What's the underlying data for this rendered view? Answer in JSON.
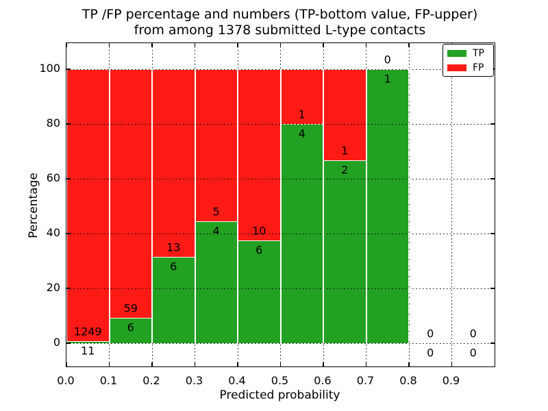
{
  "title": {
    "line1": "TP /FP percentage and numbers (TP-bottom value, FP-upper)",
    "line2": "from among 1378 submitted L-type contacts"
  },
  "axes": {
    "xlabel": "Predicted probability",
    "ylabel": "Percentage",
    "xtick_labels": [
      "0.0",
      "0.1",
      "0.2",
      "0.3",
      "0.4",
      "0.5",
      "0.6",
      "0.7",
      "0.8",
      "0.9"
    ],
    "ytick_labels": [
      "0",
      "20",
      "40",
      "60",
      "80",
      "100"
    ],
    "ytick_values": [
      0,
      20,
      40,
      60,
      80,
      100
    ]
  },
  "legend": {
    "entries": [
      {
        "label": "TP",
        "color": "#22a122"
      },
      {
        "label": "FP",
        "color": "#fe1b15"
      }
    ]
  },
  "colors": {
    "tp_green": "#22a122",
    "fp_red": "#fe1b15",
    "grid": "#000000",
    "background": "#ffffff"
  },
  "chart_data": {
    "type": "bar",
    "stacked": true,
    "title": "TP /FP percentage and numbers (TP-bottom value, FP-upper) from among 1378 submitted L-type contacts",
    "xlabel": "Predicted probability",
    "ylabel": "Percentage",
    "total_contacts": 1378,
    "bin_starts": [
      0.0,
      0.1,
      0.2,
      0.3,
      0.4,
      0.5,
      0.6,
      0.7,
      0.8,
      0.9
    ],
    "bin_width": 0.1,
    "series": [
      {
        "name": "TP",
        "color": "#22a122",
        "counts": [
          11,
          6,
          6,
          4,
          6,
          4,
          2,
          1,
          0,
          0
        ],
        "pct": [
          0.87,
          9.23,
          31.58,
          44.44,
          37.5,
          80.0,
          66.67,
          100.0,
          0,
          0
        ]
      },
      {
        "name": "FP",
        "color": "#fe1b15",
        "counts": [
          1249,
          59,
          13,
          5,
          10,
          1,
          1,
          0,
          0,
          0
        ],
        "pct": [
          99.13,
          90.77,
          68.42,
          55.56,
          62.5,
          20.0,
          33.33,
          0.0,
          0,
          0
        ]
      }
    ],
    "annotation_note": "TP count below boundary, FP count above boundary per bar",
    "xlim": [
      0.0,
      1.0
    ],
    "ylim": [
      -8.5,
      109.5
    ],
    "grid": true,
    "grid_style": "dotted",
    "legend_position": "upper right"
  }
}
